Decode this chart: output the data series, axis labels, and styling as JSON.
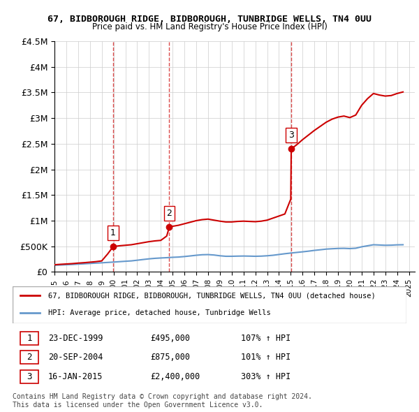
{
  "title_line1": "67, BIDBOROUGH RIDGE, BIDBOROUGH, TUNBRIDGE WELLS, TN4 0UU",
  "title_line2": "Price paid vs. HM Land Registry's House Price Index (HPI)",
  "xlim": [
    1995,
    2025.5
  ],
  "ylim": [
    0,
    4500000
  ],
  "yticks": [
    0,
    500000,
    1000000,
    1500000,
    2000000,
    2500000,
    3000000,
    3500000,
    4000000,
    4500000
  ],
  "ytick_labels": [
    "£0",
    "£500K",
    "£1M",
    "£1.5M",
    "£2M",
    "£2.5M",
    "£3M",
    "£3.5M",
    "£4M",
    "£4.5M"
  ],
  "xtick_years": [
    1995,
    1996,
    1997,
    1998,
    1999,
    2000,
    2001,
    2002,
    2003,
    2004,
    2005,
    2006,
    2007,
    2008,
    2009,
    2010,
    2011,
    2012,
    2013,
    2014,
    2015,
    2016,
    2017,
    2018,
    2019,
    2020,
    2021,
    2022,
    2023,
    2024,
    2025
  ],
  "sale_dates": [
    1999.97,
    2004.72,
    2015.04
  ],
  "sale_prices": [
    495000,
    875000,
    2400000
  ],
  "sale_labels": [
    "1",
    "2",
    "3"
  ],
  "red_line_color": "#cc0000",
  "blue_line_color": "#6699cc",
  "dashed_line_color": "#cc0000",
  "background_color": "#ffffff",
  "grid_color": "#cccccc",
  "legend_label_red": "67, BIDBOROUGH RIDGE, BIDBOROUGH, TUNBRIDGE WELLS, TN4 0UU (detached house)",
  "legend_label_blue": "HPI: Average price, detached house, Tunbridge Wells",
  "table_entries": [
    {
      "num": "1",
      "date": "23-DEC-1999",
      "price": "£495,000",
      "hpi": "107% ↑ HPI"
    },
    {
      "num": "2",
      "date": "20-SEP-2004",
      "price": "£875,000",
      "hpi": "101% ↑ HPI"
    },
    {
      "num": "3",
      "date": "16-JAN-2015",
      "price": "£2,400,000",
      "hpi": "303% ↑ HPI"
    }
  ],
  "footer_text": "Contains HM Land Registry data © Crown copyright and database right 2024.\nThis data is licensed under the Open Government Licence v3.0.",
  "hpi_x": [
    1995.0,
    1995.5,
    1996.0,
    1996.5,
    1997.0,
    1997.5,
    1998.0,
    1998.5,
    1999.0,
    1999.5,
    2000.0,
    2000.5,
    2001.0,
    2001.5,
    2002.0,
    2002.5,
    2003.0,
    2003.5,
    2004.0,
    2004.5,
    2005.0,
    2005.5,
    2006.0,
    2006.5,
    2007.0,
    2007.5,
    2008.0,
    2008.5,
    2009.0,
    2009.5,
    2010.0,
    2010.5,
    2011.0,
    2011.5,
    2012.0,
    2012.5,
    2013.0,
    2013.5,
    2014.0,
    2014.5,
    2015.0,
    2015.5,
    2016.0,
    2016.5,
    2017.0,
    2017.5,
    2018.0,
    2018.5,
    2019.0,
    2019.5,
    2020.0,
    2020.5,
    2021.0,
    2021.5,
    2022.0,
    2022.5,
    2023.0,
    2023.5,
    2024.0,
    2024.5
  ],
  "hpi_y": [
    130000,
    135000,
    140000,
    145000,
    152000,
    158000,
    165000,
    172000,
    178000,
    185000,
    192000,
    200000,
    208000,
    215000,
    228000,
    242000,
    255000,
    265000,
    272000,
    278000,
    285000,
    290000,
    300000,
    312000,
    325000,
    335000,
    338000,
    330000,
    315000,
    305000,
    305000,
    308000,
    310000,
    308000,
    305000,
    308000,
    315000,
    325000,
    340000,
    355000,
    368000,
    380000,
    392000,
    405000,
    420000,
    432000,
    445000,
    452000,
    458000,
    460000,
    455000,
    462000,
    490000,
    510000,
    530000,
    525000,
    520000,
    522000,
    528000,
    530000
  ],
  "red_x": [
    1995.0,
    1995.5,
    1996.0,
    1996.5,
    1997.0,
    1997.5,
    1998.0,
    1998.5,
    1999.0,
    1999.5,
    1999.97,
    2000.5,
    2001.0,
    2001.5,
    2002.0,
    2002.5,
    2003.0,
    2003.5,
    2004.0,
    2004.5,
    2004.72,
    2005.0,
    2005.5,
    2006.0,
    2006.5,
    2007.0,
    2007.5,
    2008.0,
    2008.5,
    2009.0,
    2009.5,
    2010.0,
    2010.5,
    2011.0,
    2011.5,
    2012.0,
    2012.5,
    2013.0,
    2013.5,
    2014.0,
    2014.5,
    2015.0,
    2015.04,
    2015.5,
    2016.0,
    2016.5,
    2017.0,
    2017.5,
    2018.0,
    2018.5,
    2019.0,
    2019.5,
    2020.0,
    2020.5,
    2021.0,
    2021.5,
    2022.0,
    2022.5,
    2023.0,
    2023.5,
    2024.0,
    2024.5
  ],
  "red_y": [
    140000,
    148000,
    155000,
    162000,
    172000,
    180000,
    190000,
    200000,
    215000,
    350000,
    495000,
    510000,
    520000,
    530000,
    550000,
    570000,
    590000,
    605000,
    615000,
    700000,
    875000,
    890000,
    910000,
    940000,
    970000,
    1000000,
    1020000,
    1030000,
    1010000,
    990000,
    975000,
    975000,
    985000,
    990000,
    985000,
    980000,
    990000,
    1010000,
    1050000,
    1090000,
    1130000,
    1420000,
    2400000,
    2480000,
    2580000,
    2670000,
    2760000,
    2840000,
    2920000,
    2980000,
    3020000,
    3040000,
    3010000,
    3060000,
    3250000,
    3380000,
    3480000,
    3450000,
    3430000,
    3440000,
    3480000,
    3510000
  ]
}
